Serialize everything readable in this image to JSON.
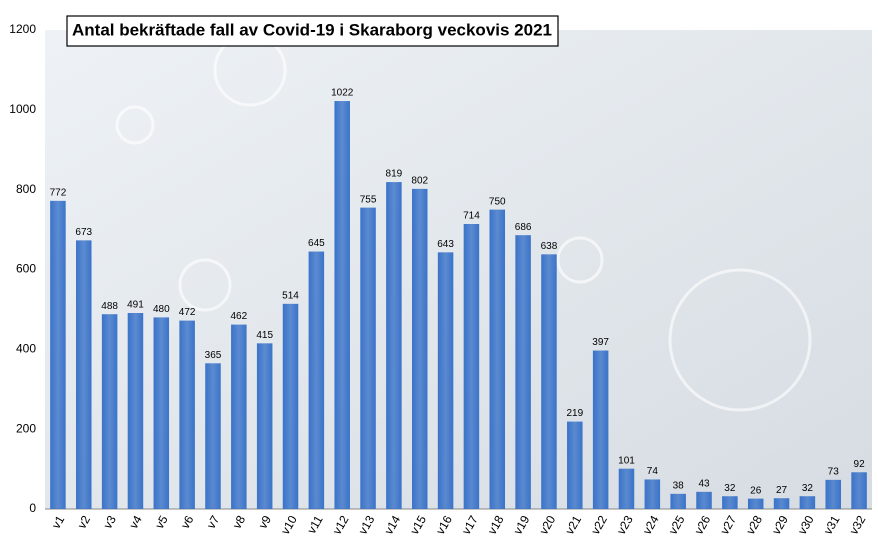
{
  "chart_data": {
    "type": "bar",
    "title": "Antal bekräftade fall av Covid-19 i Skaraborg veckovis 2021",
    "categories": [
      "v1",
      "v2",
      "v3",
      "v4",
      "v5",
      "v6",
      "v7",
      "v8",
      "v9",
      "v10",
      "v11",
      "v12",
      "v13",
      "v14",
      "v15",
      "v16",
      "v17",
      "v18",
      "v19",
      "v20",
      "v21",
      "v22",
      "v23",
      "v24",
      "v25",
      "v26",
      "v27",
      "v28",
      "v29",
      "v30",
      "v31",
      "v32"
    ],
    "values": [
      772,
      673,
      488,
      491,
      480,
      472,
      365,
      462,
      415,
      514,
      645,
      1022,
      755,
      819,
      802,
      643,
      714,
      750,
      686,
      638,
      219,
      397,
      101,
      74,
      38,
      43,
      32,
      26,
      27,
      32,
      73,
      92
    ],
    "color": "#3a73c9",
    "ylim": [
      0,
      1200
    ],
    "yticks": [
      0,
      200,
      400,
      600,
      800,
      1000,
      1200
    ],
    "grid": false
  }
}
